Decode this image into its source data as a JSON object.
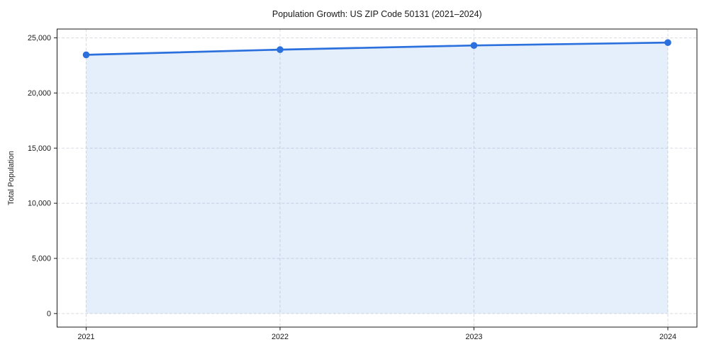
{
  "chart_data": {
    "type": "area",
    "title": "Population Growth: US ZIP Code 50131 (2021–2024)",
    "xlabel": "",
    "ylabel": "Total Population",
    "x": [
      2021,
      2022,
      2023,
      2024
    ],
    "series": [
      {
        "name": "Total Population",
        "values": [
          23460,
          23930,
          24310,
          24570
        ]
      }
    ],
    "xtick_labels": [
      "2021",
      "2022",
      "2023",
      "2024"
    ],
    "yticks": [
      0,
      5000,
      10000,
      15000,
      20000,
      25000
    ],
    "ytick_labels": [
      "0",
      "5,000",
      "10,000",
      "15,000",
      "20,000",
      "25,000"
    ],
    "xlim": [
      2020.85,
      2024.15
    ],
    "ylim": [
      -1229,
      25799
    ],
    "grid": true,
    "grid_style": "dashed",
    "legend_position": "none",
    "marker": "circle",
    "colors": {
      "line": "#2b70dd",
      "fill": "rgba(43,112,221,0.12)",
      "grid": "#d9dce2",
      "axis": "#1a1a1a",
      "text": "#1a1a1a",
      "background": "#ffffff"
    }
  }
}
